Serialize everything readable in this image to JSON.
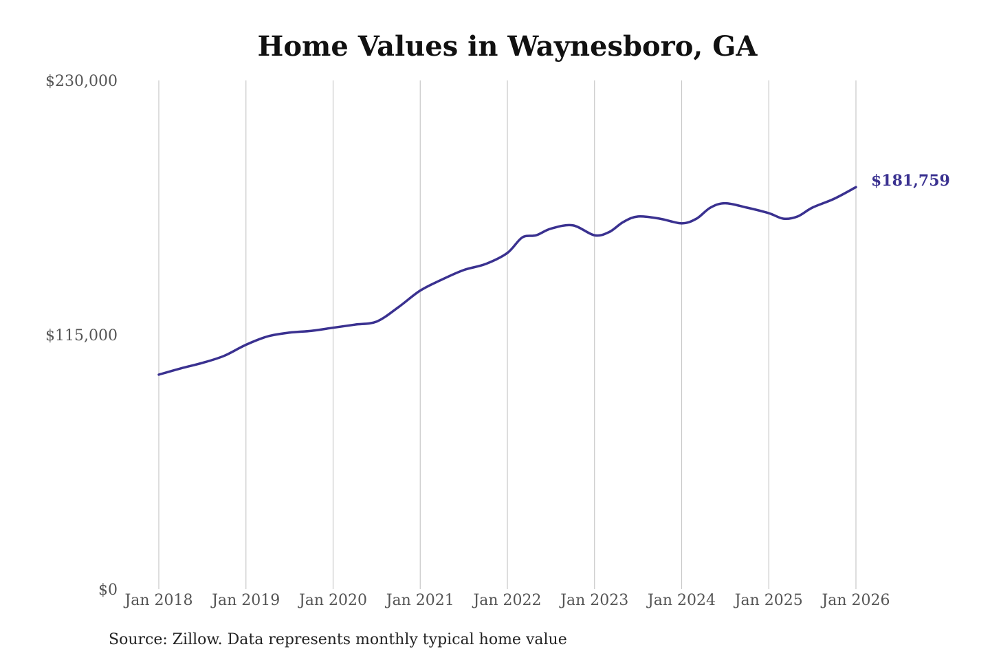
{
  "chart_data": {
    "type": "line",
    "title": "Home Values in Waynesboro, GA",
    "xlabel": "",
    "ylabel": "",
    "ylim": [
      0,
      230000
    ],
    "yticks": [
      {
        "value": 0,
        "label": "$0"
      },
      {
        "value": 115000,
        "label": "$115,000"
      },
      {
        "value": 230000,
        "label": "$230,000"
      }
    ],
    "xlim": [
      2018,
      2026
    ],
    "xticks": [
      {
        "value": 2018,
        "label": "Jan 2018"
      },
      {
        "value": 2019,
        "label": "Jan 2019"
      },
      {
        "value": 2020,
        "label": "Jan 2020"
      },
      {
        "value": 2021,
        "label": "Jan 2021"
      },
      {
        "value": 2022,
        "label": "Jan 2022"
      },
      {
        "value": 2023,
        "label": "Jan 2023"
      },
      {
        "value": 2024,
        "label": "Jan 2024"
      },
      {
        "value": 2025,
        "label": "Jan 2025"
      },
      {
        "value": 2026,
        "label": "Jan 2026"
      }
    ],
    "grid": "vertical",
    "legend": "none",
    "series": [
      {
        "color": "#3a3190",
        "end_label": "$181,759",
        "x": [
          2018.0,
          2018.25,
          2018.5,
          2018.75,
          2019.0,
          2019.25,
          2019.5,
          2019.75,
          2020.0,
          2020.25,
          2020.5,
          2020.75,
          2021.0,
          2021.25,
          2021.5,
          2021.75,
          2022.0,
          2022.17,
          2022.33,
          2022.5,
          2022.75,
          2023.0,
          2023.17,
          2023.33,
          2023.5,
          2023.75,
          2024.0,
          2024.17,
          2024.33,
          2024.5,
          2024.75,
          2025.0,
          2025.17,
          2025.33,
          2025.5,
          2025.75,
          2026.0
        ],
        "y": [
          97000,
          99800,
          102300,
          105500,
          110500,
          114300,
          116000,
          116800,
          118200,
          119600,
          121000,
          127500,
          135000,
          140000,
          144300,
          147000,
          152000,
          159000,
          160000,
          163000,
          164500,
          160000,
          161500,
          166000,
          168500,
          167500,
          165400,
          167500,
          172500,
          174500,
          172500,
          170000,
          167500,
          168500,
          172500,
          176500,
          181759
        ]
      }
    ]
  },
  "source": "Source: Zillow. Data represents monthly typical home value"
}
